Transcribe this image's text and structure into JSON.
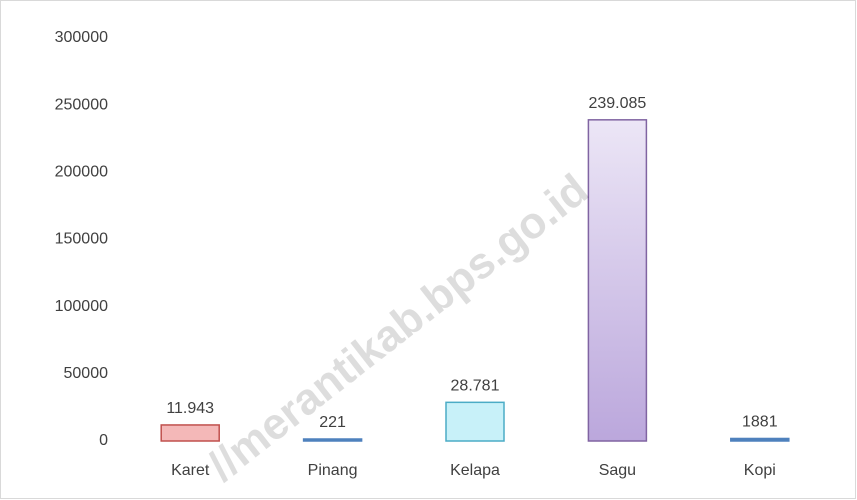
{
  "chart_data": {
    "type": "bar",
    "categories": [
      "Karet",
      "Pinang",
      "Kelapa",
      "Sagu",
      "Kopi"
    ],
    "values": [
      11943,
      221,
      28781,
      239085,
      1881
    ],
    "value_labels": [
      "11.943",
      "221",
      "28.781",
      "239.085",
      "1881"
    ],
    "colors": [
      "#f4b8b8",
      "#4f81bd",
      "#c8f1f9",
      "#d9cdee",
      "#4f81bd"
    ],
    "edge_colors": [
      "#c0504d",
      "#4f81bd",
      "#4bacc6",
      "#8064a2",
      "#4f81bd"
    ],
    "ylim": [
      0,
      300000
    ],
    "yticks": [
      0,
      50000,
      100000,
      150000,
      200000,
      250000,
      300000
    ],
    "grid": false,
    "watermark": "//merantikab.bps.go.id"
  }
}
